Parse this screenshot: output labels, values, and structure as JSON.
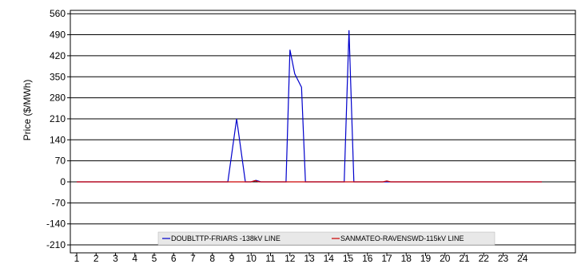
{
  "chart_data": {
    "type": "line",
    "ylabel": "Price ($/MWh)",
    "ylim": [
      -210,
      560
    ],
    "yticks": [
      -210,
      -140,
      -70,
      0,
      70,
      140,
      210,
      280,
      350,
      420,
      490,
      560
    ],
    "xticks": [
      "1",
      "2",
      "3",
      "4",
      "5",
      "6",
      "7",
      "8",
      "9",
      "10",
      "11",
      "12",
      "13",
      "14",
      "15",
      "16",
      "17",
      "18",
      "19",
      "20",
      "21",
      "22",
      "23",
      "24"
    ],
    "xlim": [
      0.85,
      25.0
    ],
    "grid": true,
    "legend": "bottom-center",
    "series": [
      {
        "name": "DOUBLTTP-FRIARS  -138kV LINE",
        "color": "#0000cc",
        "x": [
          1,
          8.8,
          9.25,
          9.7,
          10.0,
          10.25,
          10.5,
          11.8,
          12.0,
          12.25,
          12.6,
          12.8,
          14.8,
          15.05,
          15.3,
          25.0
        ],
        "y": [
          0,
          0,
          210,
          0,
          0,
          5,
          0,
          0,
          440,
          360,
          315,
          0,
          0,
          505,
          0,
          0
        ]
      },
      {
        "name": "SANMATEO-RAVENSWD-115kV LINE",
        "color": "#cc0000",
        "x": [
          1,
          10.0,
          10.2,
          10.4,
          16.8,
          17.0,
          17.2,
          25.0
        ],
        "y": [
          0,
          0,
          4,
          0,
          0,
          3,
          0,
          0
        ]
      }
    ]
  }
}
